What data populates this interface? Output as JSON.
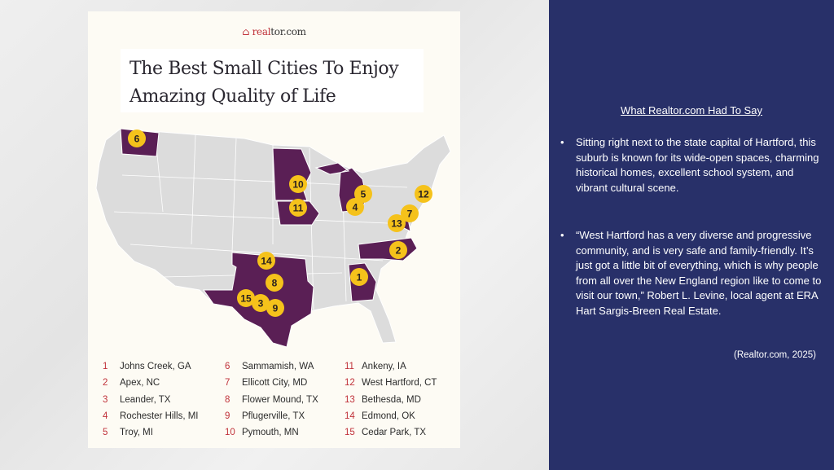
{
  "poster": {
    "logo": {
      "prefix": "real",
      "suffix": "tor.com"
    },
    "title_line1": "The Best Small Cities To Enjoy",
    "title_line2": "Amazing Quality of Life",
    "markers": [
      "1",
      "2",
      "3",
      "4",
      "5",
      "6",
      "7",
      "8",
      "9",
      "10",
      "11",
      "12",
      "13",
      "14",
      "15"
    ],
    "list": [
      {
        "n": "1",
        "city": "Johns Creek, GA"
      },
      {
        "n": "2",
        "city": "Apex, NC"
      },
      {
        "n": "3",
        "city": "Leander, TX"
      },
      {
        "n": "4",
        "city": "Rochester Hills, MI"
      },
      {
        "n": "5",
        "city": "Troy, MI"
      },
      {
        "n": "6",
        "city": "Sammamish, WA"
      },
      {
        "n": "7",
        "city": "Ellicott City, MD"
      },
      {
        "n": "8",
        "city": "Flower Mound, TX"
      },
      {
        "n": "9",
        "city": "Pflugerville, TX"
      },
      {
        "n": "10",
        "city": "Pymouth, MN"
      },
      {
        "n": "11",
        "city": "Ankeny, IA"
      },
      {
        "n": "12",
        "city": "West Hartford, CT"
      },
      {
        "n": "13",
        "city": "Bethesda, MD"
      },
      {
        "n": "14",
        "city": "Edmond, OK"
      },
      {
        "n": "15",
        "city": "Cedar Park, TX"
      }
    ],
    "colors": {
      "highlight": "#5a1f55",
      "marker": "#f5c21b",
      "land": "#dcdcdc"
    }
  },
  "panel": {
    "heading": "What Realtor.com Had To Say",
    "bullets": [
      "Sitting right next to the state capital of Hartford, this suburb is known for its wide-open spaces, charming historical homes, excellent school system, and vibrant cultural scene.",
      "“West Hartford has a very diverse and progressive community, and is very safe and family-friendly. It’s just got a little bit of everything, which is why people from all over the New England region like to come to visit our town,” Robert L. Levine, local agent at ERA Hart Sargis-Breen Real Estate."
    ],
    "citation": "(Realtor.com, 2025)",
    "bullet_char": "•"
  }
}
